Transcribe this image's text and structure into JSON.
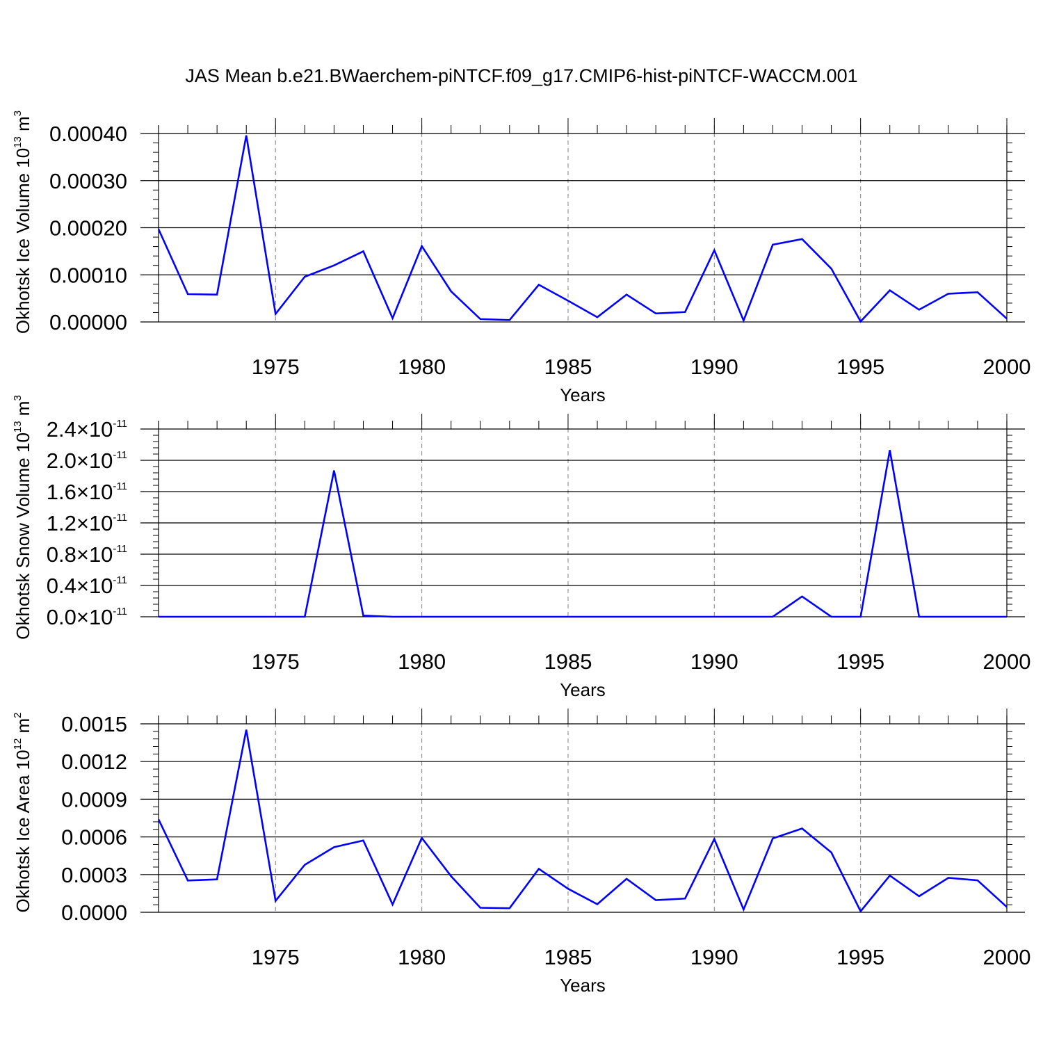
{
  "title": "JAS Mean b.e21.BWaerchem-piNTCF.f09_g17.CMIP6-hist-piNTCF-WACCM.001",
  "colors": {
    "line": "#0000ff",
    "axis": "#000000",
    "grid": "#808080",
    "background": "#ffffff"
  },
  "chart_data": [
    {
      "type": "line",
      "xlabel": "Years",
      "ylabel": "Okhotsk Ice Volume 10",
      "ylabel_exp": "13",
      "ylabel_unit": " m",
      "ylabel_unit_exp": "3",
      "xlim": [
        1971,
        2000
      ],
      "ylim": [
        0,
        0.0004
      ],
      "x_ticks": [
        1975,
        1980,
        1985,
        1990,
        1995,
        2000
      ],
      "x_tick_labels": [
        "1975",
        "1980",
        "1985",
        "1990",
        "1995",
        "2000"
      ],
      "y_ticks": [
        0,
        0.0001,
        0.0002,
        0.0003,
        0.0004
      ],
      "y_tick_labels": [
        "0.00000",
        "0.00010",
        "0.00020",
        "0.00030",
        "0.00040"
      ],
      "grid": "vertical dashed at major x ticks",
      "x": [
        1971,
        1972,
        1973,
        1974,
        1975,
        1976,
        1977,
        1978,
        1979,
        1980,
        1981,
        1982,
        1983,
        1984,
        1985,
        1986,
        1987,
        1988,
        1989,
        1990,
        1991,
        1992,
        1993,
        1994,
        1995,
        1996,
        1997,
        1998,
        1999,
        2000
      ],
      "series": [
        {
          "values": [
            0.000197,
            5.9e-05,
            5.8e-05,
            0.000396,
            1.7e-05,
            9.6e-05,
            0.00012,
            0.00015,
            8e-06,
            0.000161,
            6.5e-05,
            6e-06,
            4e-06,
            7.9e-05,
            4.5e-05,
            1e-05,
            5.8e-05,
            1.8e-05,
            2.1e-05,
            0.000152,
            3e-06,
            0.000164,
            0.000176,
            0.000113,
            1e-06,
            6.7e-05,
            2.6e-05,
            6e-05,
            6.3e-05,
            7e-06
          ]
        }
      ]
    },
    {
      "type": "line",
      "xlabel": "Years",
      "ylabel": "Okhotsk Snow Volume 10",
      "ylabel_exp": "13",
      "ylabel_unit": " m",
      "ylabel_unit_exp": "3",
      "xlim": [
        1971,
        2000
      ],
      "ylim": [
        0,
        2.4e-11
      ],
      "x_ticks": [
        1975,
        1980,
        1985,
        1990,
        1995,
        2000
      ],
      "x_tick_labels": [
        "1975",
        "1980",
        "1985",
        "1990",
        "1995",
        "2000"
      ],
      "y_ticks": [
        0,
        4e-12,
        8e-12,
        1.2e-11,
        1.6e-11,
        2e-11,
        2.4e-11
      ],
      "y_tick_mantissas": [
        "0.0",
        "0.4",
        "0.8",
        "1.2",
        "1.6",
        "2.0",
        "2.4"
      ],
      "y_tick_times": "×",
      "y_tick_base": "10",
      "y_tick_exp": "-11",
      "grid": "vertical dashed at major x ticks",
      "x": [
        1971,
        1972,
        1973,
        1974,
        1975,
        1976,
        1977,
        1978,
        1979,
        1980,
        1981,
        1982,
        1983,
        1984,
        1985,
        1986,
        1987,
        1988,
        1989,
        1990,
        1991,
        1992,
        1993,
        1994,
        1995,
        1996,
        1997,
        1998,
        1999,
        2000
      ],
      "series": [
        {
          "values": [
            0,
            0,
            0,
            0,
            0,
            0,
            1.87e-11,
            1.5e-13,
            0,
            0,
            0,
            0,
            0,
            0,
            0,
            0,
            0,
            0,
            0,
            0,
            0,
            0,
            2.6e-12,
            0,
            0,
            2.13e-11,
            0,
            0,
            0,
            0
          ]
        }
      ]
    },
    {
      "type": "line",
      "xlabel": "Years",
      "ylabel": "Okhotsk Ice Area 10",
      "ylabel_exp": "12",
      "ylabel_unit": " m",
      "ylabel_unit_exp": "2",
      "xlim": [
        1971,
        2000
      ],
      "ylim": [
        0,
        0.0015
      ],
      "x_ticks": [
        1975,
        1980,
        1985,
        1990,
        1995,
        2000
      ],
      "x_tick_labels": [
        "1975",
        "1980",
        "1985",
        "1990",
        "1995",
        "2000"
      ],
      "y_ticks": [
        0,
        0.0003,
        0.0006,
        0.0009,
        0.0012,
        0.0015
      ],
      "y_tick_labels": [
        "0.0000",
        "0.0003",
        "0.0006",
        "0.0009",
        "0.0012",
        "0.0015"
      ],
      "grid": "vertical dashed at major x ticks",
      "x": [
        1971,
        1972,
        1973,
        1974,
        1975,
        1976,
        1977,
        1978,
        1979,
        1980,
        1981,
        1982,
        1983,
        1984,
        1985,
        1986,
        1987,
        1988,
        1989,
        1990,
        1991,
        1992,
        1993,
        1994,
        1995,
        1996,
        1997,
        1998,
        1999,
        2000
      ],
      "series": [
        {
          "values": [
            0.00074,
            0.000253,
            0.000262,
            0.001453,
            9.1e-05,
            0.000378,
            0.000518,
            0.000572,
            6.2e-05,
            0.000592,
            0.000287,
            3.6e-05,
            3.2e-05,
            0.000346,
            0.000187,
            6.4e-05,
            0.000266,
            9.7e-05,
            0.000109,
            0.000583,
            2.2e-05,
            0.000588,
            0.000667,
            0.000476,
            8e-06,
            0.000292,
            0.000128,
            0.000274,
            0.000254,
            4.2e-05
          ]
        }
      ]
    }
  ]
}
